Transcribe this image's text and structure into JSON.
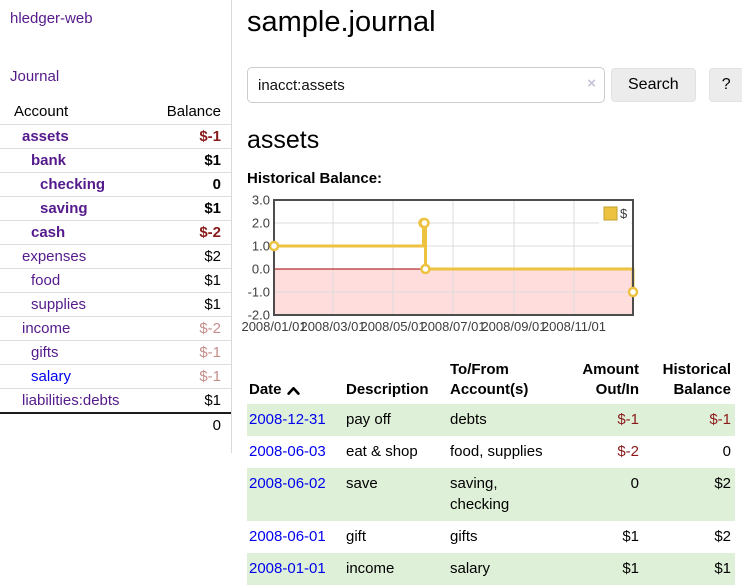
{
  "colors": {
    "link_purple": "#551A8B",
    "link_blue": "#0000EE",
    "negative_strong": "#8b1a1a",
    "negative_dim": "#c48e8c",
    "row_stripe_green": "#dff0d8",
    "chart_line_gold": "#EDC240",
    "chart_negative_fill": "#ffdddd",
    "chart_zero_line": "#a00000",
    "chart_border": "#4d4d4d"
  },
  "app": {
    "title": "hledger-web"
  },
  "sidebar": {
    "journal_link": "Journal",
    "accounts": {
      "header_account": "Account",
      "header_balance": "Balance",
      "rows": [
        {
          "name": "assets",
          "balance": "$-1",
          "level": 1,
          "bold": true,
          "neg": "strong",
          "blue": false
        },
        {
          "name": "bank",
          "balance": "$1",
          "level": 2,
          "bold": true,
          "neg": "none",
          "blue": false
        },
        {
          "name": "checking",
          "balance": "0",
          "level": 3,
          "bold": true,
          "neg": "none",
          "blue": false
        },
        {
          "name": "saving",
          "balance": "$1",
          "level": 3,
          "bold": true,
          "neg": "none",
          "blue": false
        },
        {
          "name": "cash",
          "balance": "$-2",
          "level": 2,
          "bold": true,
          "neg": "strong",
          "blue": false
        },
        {
          "name": "expenses",
          "balance": "$2",
          "level": 1,
          "bold": false,
          "neg": "none",
          "blue": false
        },
        {
          "name": "food",
          "balance": "$1",
          "level": 2,
          "bold": false,
          "neg": "none",
          "blue": false
        },
        {
          "name": "supplies",
          "balance": "$1",
          "level": 2,
          "bold": false,
          "neg": "none",
          "blue": false
        },
        {
          "name": "income",
          "balance": "$-2",
          "level": 1,
          "bold": false,
          "neg": "dim",
          "blue": false
        },
        {
          "name": "gifts",
          "balance": "$-1",
          "level": 2,
          "bold": false,
          "neg": "dim",
          "blue": false
        },
        {
          "name": "salary",
          "balance": "$-1",
          "level": 2,
          "bold": false,
          "neg": "dim",
          "blue": true
        },
        {
          "name": "liabilities:debts",
          "balance": "$1",
          "level": 1,
          "bold": false,
          "neg": "none",
          "blue": false
        }
      ],
      "total": "0"
    }
  },
  "main": {
    "title": "sample.journal",
    "search": {
      "value": "inacct:assets",
      "clear": "×",
      "button_label": "Search",
      "help_label": "?"
    },
    "heading": "assets",
    "chart_label": "Historical Balance:"
  },
  "chart_data": {
    "type": "line",
    "step": true,
    "title": "Historical Balance",
    "series": [
      {
        "name": "$",
        "color": "#EDC240",
        "points": [
          [
            "2008-01-01",
            1
          ],
          [
            "2008-06-01",
            2
          ],
          [
            "2008-06-02",
            2
          ],
          [
            "2008-06-03",
            0
          ],
          [
            "2008-12-31",
            -1
          ]
        ]
      }
    ],
    "x_range": [
      "2008-01-01",
      "2008-12-31"
    ],
    "x_ticks": [
      "2008/01/01",
      "2008/03/01",
      "2008/05/01",
      "2008/07/01",
      "2008/09/01",
      "2008/11/01"
    ],
    "y_ticks": [
      "3.0",
      "2.0",
      "1.0",
      "0.0",
      "-1.0",
      "-2.0"
    ],
    "ylim": [
      -2,
      3
    ],
    "legend": {
      "label": "$",
      "position": "top-right"
    },
    "grid": true,
    "negative_region": true
  },
  "register": {
    "headers": {
      "date": [
        "Date"
      ],
      "description": [
        "Description"
      ],
      "accounts": [
        "To/From",
        "Account(s)"
      ],
      "amount": [
        "Amount",
        "Out/In"
      ],
      "balance": [
        "Historical",
        "Balance"
      ]
    },
    "sort": {
      "column": "date",
      "direction": "asc"
    },
    "rows": [
      {
        "date": "2008-12-31",
        "description": "pay off",
        "accounts": [
          "debts"
        ],
        "amount": "$-1",
        "amount_neg": true,
        "balance": "$-1",
        "balance_neg": true
      },
      {
        "date": "2008-06-03",
        "description": "eat & shop",
        "accounts": [
          "food, supplies"
        ],
        "amount": "$-2",
        "amount_neg": true,
        "balance": "0",
        "balance_neg": false
      },
      {
        "date": "2008-06-02",
        "description": "save",
        "accounts": [
          "saving,",
          "checking"
        ],
        "amount": "0",
        "amount_neg": false,
        "balance": "$2",
        "balance_neg": false
      },
      {
        "date": "2008-06-01",
        "description": "gift",
        "accounts": [
          "gifts"
        ],
        "amount": "$1",
        "amount_neg": false,
        "balance": "$2",
        "balance_neg": false
      },
      {
        "date": "2008-01-01",
        "description": "income",
        "accounts": [
          "salary"
        ],
        "amount": "$1",
        "amount_neg": false,
        "balance": "$1",
        "balance_neg": false
      }
    ]
  }
}
